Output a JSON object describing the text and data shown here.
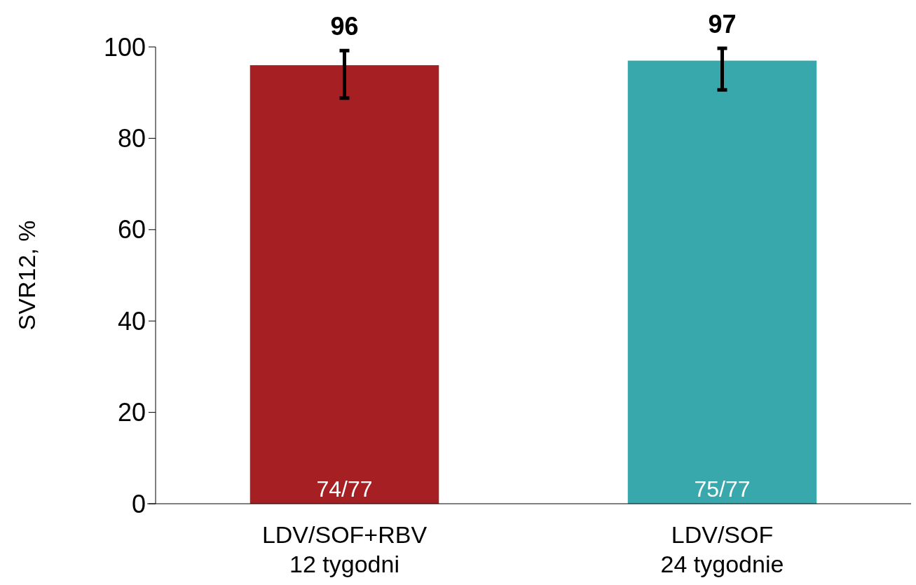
{
  "chart_data": {
    "type": "bar",
    "ylabel": "SVR12, %",
    "categories": [
      "LDV/SOF+RBV\n12 tygodni",
      "LDV/SOF\n24 tygodnie"
    ],
    "values": [
      96,
      97
    ],
    "colors": [
      "#a61f22",
      "#38a8ad"
    ],
    "errors": [
      [
        88.8,
        99.2
      ],
      [
        90.6,
        99.7
      ]
    ],
    "ylim": [
      0,
      100
    ],
    "yticks": [
      0,
      20,
      40,
      60,
      80,
      100
    ],
    "grid": false,
    "data_labels": true,
    "annotations": [
      {
        "text": "74/77",
        "x": "LDV/SOF+RBV\n12 tygodni",
        "y": 0
      },
      {
        "text": "75/77",
        "x": "LDV/SOF\n24 tygodnie",
        "y": 0
      }
    ]
  }
}
